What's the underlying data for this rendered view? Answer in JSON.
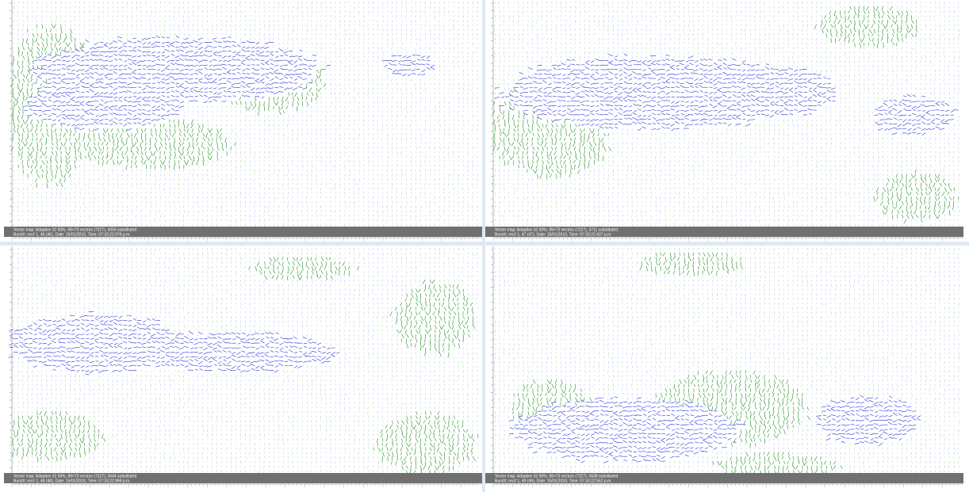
{
  "panels": [
    {
      "caption": "Vector map: Adaptive 32 50%, 99×73 vectors (7227), 3059 substituted",
      "info": "Burst#; rec# 1, 46 (46), Date: 15/01/2010, Time: 07:33:22:976 p.m."
    },
    {
      "caption": "Vector map: Adaptive 32 50%, 99×73 vectors (7227), 3711 substituted",
      "info": "Burst#; rec# 1, 47 (47), Date: 15/01/2010, Time: 07:33:22:437 p.m."
    },
    {
      "caption": "Vector map: Adaptive 32 50%, 99×73 vectors (7227), 3644 substituted",
      "info": "Burst#; rec# 1, 48 (48), Date: 15/01/2010, Time: 07:33:22:999 p.m."
    },
    {
      "caption": "Vector map: Adaptive 32 50%, 99×73 vectors (7227), 3638 substituted",
      "info": "Burst#; rec# 1, 49 (49), Date: 15/01/2010, Time: 07:33:22:562 p.m."
    }
  ]
}
